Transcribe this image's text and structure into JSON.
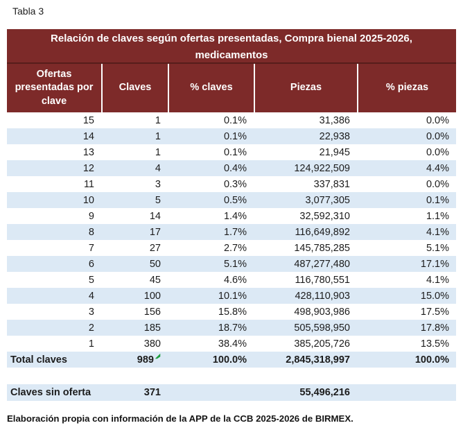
{
  "page": {
    "label": "Tabla 3",
    "footer": "Elaboración propia con información de la APP de la CCB 2025-2026 de BIRMEX."
  },
  "colors": {
    "header_maroon": "#7d2a29",
    "row_light_blue": "#dce9f5",
    "header_text": "#ffffff",
    "body_text": "#1c1c1c",
    "flag_green": "#1e9f3e"
  },
  "table": {
    "title": "Relación de claves según ofertas presentadas, Compra bienal 2025-2026, medicamentos",
    "columns": [
      "Ofertas presentadas por clave",
      "Claves",
      "% claves",
      "Piezas",
      "% piezas"
    ],
    "rows": [
      {
        "cells": [
          "15",
          "1",
          "0.1%",
          "31,386",
          "0.0%"
        ],
        "shaded": false
      },
      {
        "cells": [
          "14",
          "1",
          "0.1%",
          "22,938",
          "0.0%"
        ],
        "shaded": true
      },
      {
        "cells": [
          "13",
          "1",
          "0.1%",
          "21,945",
          "0.0%"
        ],
        "shaded": false
      },
      {
        "cells": [
          "12",
          "4",
          "0.4%",
          "124,922,509",
          "4.4%"
        ],
        "shaded": true
      },
      {
        "cells": [
          "11",
          "3",
          "0.3%",
          "337,831",
          "0.0%"
        ],
        "shaded": false
      },
      {
        "cells": [
          "10",
          "5",
          "0.5%",
          "3,077,305",
          "0.1%"
        ],
        "shaded": true
      },
      {
        "cells": [
          "9",
          "14",
          "1.4%",
          "32,592,310",
          "1.1%"
        ],
        "shaded": false
      },
      {
        "cells": [
          "8",
          "17",
          "1.7%",
          "116,649,892",
          "4.1%"
        ],
        "shaded": true
      },
      {
        "cells": [
          "7",
          "27",
          "2.7%",
          "145,785,285",
          "5.1%"
        ],
        "shaded": false
      },
      {
        "cells": [
          "6",
          "50",
          "5.1%",
          "487,277,480",
          "17.1%"
        ],
        "shaded": true
      },
      {
        "cells": [
          "5",
          "45",
          "4.6%",
          "116,780,551",
          "4.1%"
        ],
        "shaded": false
      },
      {
        "cells": [
          "4",
          "100",
          "10.1%",
          "428,110,903",
          "15.0%"
        ],
        "shaded": true
      },
      {
        "cells": [
          "3",
          "156",
          "15.8%",
          "498,903,986",
          "17.5%"
        ],
        "shaded": false
      },
      {
        "cells": [
          "2",
          "185",
          "18.7%",
          "505,598,950",
          "17.8%"
        ],
        "shaded": true
      },
      {
        "cells": [
          "1",
          "380",
          "38.4%",
          "385,205,726",
          "13.5%"
        ],
        "shaded": false
      },
      {
        "cells": [
          "Total claves",
          "989",
          "100.0%",
          "2,845,318,997",
          "100.0%"
        ],
        "shaded": true,
        "bold": true,
        "label": true,
        "flag_cell": 1
      }
    ],
    "no_offer_row": {
      "cells": [
        "Claves sin oferta",
        "371",
        "",
        "55,496,216",
        ""
      ],
      "shaded": true,
      "bold": true,
      "label": true
    }
  }
}
